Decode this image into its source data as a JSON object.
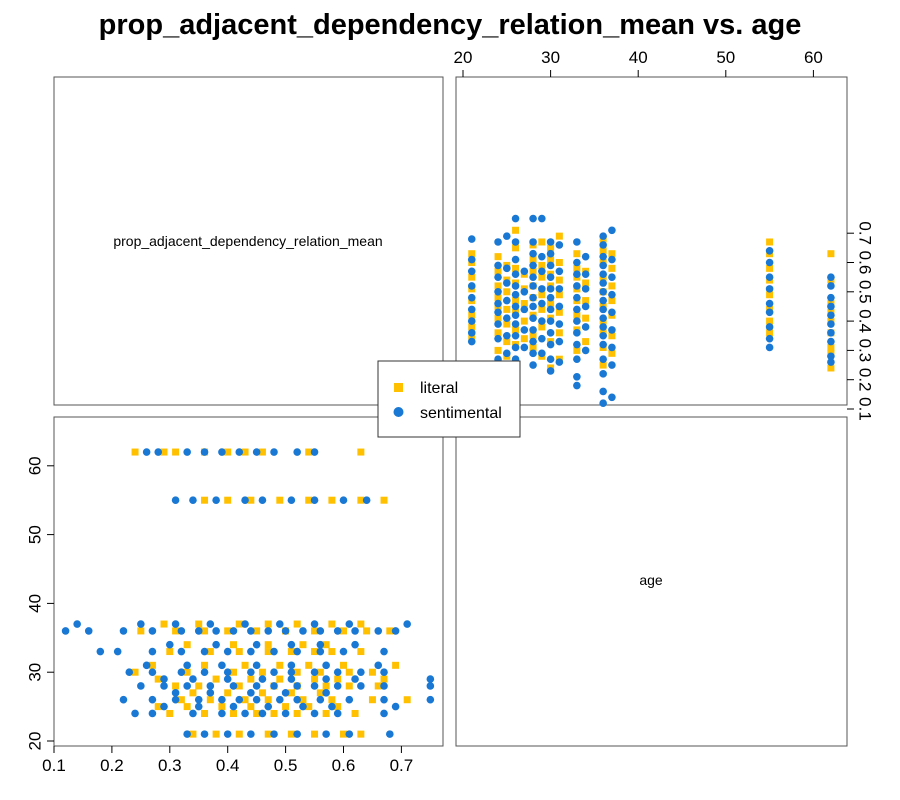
{
  "chart_data": {
    "type": "scatter",
    "title": "prop_adjacent_dependency_relation_mean vs. age",
    "diagonal_labels": [
      "prop_adjacent_dependency_relation_mean",
      "age"
    ],
    "prop_axis": {
      "range": [
        0.1,
        0.75
      ],
      "ticks": [
        "0.1",
        "0.2",
        "0.3",
        "0.4",
        "0.5",
        "0.6",
        "0.7"
      ]
    },
    "age_axis": {
      "range": [
        20,
        63
      ],
      "ticks_top": [
        "20",
        "30",
        "40",
        "50",
        "60"
      ],
      "ticks_left": [
        "20",
        "30",
        "40",
        "50",
        "60"
      ]
    },
    "legend": {
      "placement": "center",
      "entries": [
        "literal",
        "sentimental"
      ]
    },
    "series": [
      {
        "name": "literal",
        "color": "#FFC000",
        "marker": "square",
        "points": [
          [
            21,
            0.34
          ],
          [
            21,
            0.38
          ],
          [
            21,
            0.42
          ],
          [
            21,
            0.47
          ],
          [
            21,
            0.51
          ],
          [
            21,
            0.55
          ],
          [
            21,
            0.6
          ],
          [
            21,
            0.63
          ],
          [
            24,
            0.3
          ],
          [
            24,
            0.36
          ],
          [
            24,
            0.41
          ],
          [
            24,
            0.45
          ],
          [
            24,
            0.48
          ],
          [
            24,
            0.52
          ],
          [
            24,
            0.57
          ],
          [
            24,
            0.62
          ],
          [
            25,
            0.28
          ],
          [
            25,
            0.33
          ],
          [
            25,
            0.39
          ],
          [
            25,
            0.44
          ],
          [
            25,
            0.5
          ],
          [
            25,
            0.54
          ],
          [
            25,
            0.59
          ],
          [
            26,
            0.32
          ],
          [
            26,
            0.37
          ],
          [
            26,
            0.43
          ],
          [
            26,
            0.47
          ],
          [
            26,
            0.53
          ],
          [
            26,
            0.58
          ],
          [
            26,
            0.65
          ],
          [
            26,
            0.71
          ],
          [
            27,
            0.34
          ],
          [
            27,
            0.4
          ],
          [
            27,
            0.46
          ],
          [
            27,
            0.51
          ],
          [
            27,
            0.56
          ],
          [
            28,
            0.31
          ],
          [
            28,
            0.35
          ],
          [
            28,
            0.42
          ],
          [
            28,
            0.48
          ],
          [
            28,
            0.52
          ],
          [
            28,
            0.57
          ],
          [
            28,
            0.61
          ],
          [
            28,
            0.66
          ],
          [
            29,
            0.28
          ],
          [
            29,
            0.38
          ],
          [
            29,
            0.44
          ],
          [
            29,
            0.49
          ],
          [
            29,
            0.55
          ],
          [
            29,
            0.59
          ],
          [
            29,
            0.67
          ],
          [
            30,
            0.24
          ],
          [
            30,
            0.33
          ],
          [
            30,
            0.41
          ],
          [
            30,
            0.46
          ],
          [
            30,
            0.52
          ],
          [
            30,
            0.56
          ],
          [
            30,
            0.61
          ],
          [
            30,
            0.65
          ],
          [
            31,
            0.27
          ],
          [
            31,
            0.36
          ],
          [
            31,
            0.43
          ],
          [
            31,
            0.49
          ],
          [
            31,
            0.54
          ],
          [
            31,
            0.6
          ],
          [
            31,
            0.69
          ],
          [
            33,
            0.3
          ],
          [
            33,
            0.37
          ],
          [
            33,
            0.42
          ],
          [
            33,
            0.47
          ],
          [
            33,
            0.51
          ],
          [
            33,
            0.55
          ],
          [
            33,
            0.58
          ],
          [
            33,
            0.63
          ],
          [
            34,
            0.33
          ],
          [
            34,
            0.41
          ],
          [
            34,
            0.47
          ],
          [
            34,
            0.53
          ],
          [
            34,
            0.57
          ],
          [
            36,
            0.25
          ],
          [
            36,
            0.31
          ],
          [
            36,
            0.36
          ],
          [
            36,
            0.4
          ],
          [
            36,
            0.45
          ],
          [
            36,
            0.5
          ],
          [
            36,
            0.55
          ],
          [
            36,
            0.6
          ],
          [
            36,
            0.64
          ],
          [
            36,
            0.68
          ],
          [
            37,
            0.29
          ],
          [
            37,
            0.35
          ],
          [
            37,
            0.42
          ],
          [
            37,
            0.47
          ],
          [
            37,
            0.52
          ],
          [
            37,
            0.58
          ],
          [
            37,
            0.63
          ],
          [
            55,
            0.36
          ],
          [
            55,
            0.4
          ],
          [
            55,
            0.44
          ],
          [
            55,
            0.49
          ],
          [
            55,
            0.54
          ],
          [
            55,
            0.58
          ],
          [
            55,
            0.63
          ],
          [
            55,
            0.67
          ],
          [
            62,
            0.24
          ],
          [
            62,
            0.29
          ],
          [
            62,
            0.31
          ],
          [
            62,
            0.36
          ],
          [
            62,
            0.4
          ],
          [
            62,
            0.43
          ],
          [
            62,
            0.46
          ],
          [
            62,
            0.54
          ],
          [
            62,
            0.63
          ]
        ]
      },
      {
        "name": "sentimental",
        "color": "#1878D4",
        "marker": "circle",
        "points": [
          [
            21,
            0.33
          ],
          [
            21,
            0.36
          ],
          [
            21,
            0.4
          ],
          [
            21,
            0.44
          ],
          [
            21,
            0.48
          ],
          [
            21,
            0.52
          ],
          [
            21,
            0.57
          ],
          [
            21,
            0.61
          ],
          [
            21,
            0.68
          ],
          [
            24,
            0.24
          ],
          [
            24,
            0.27
          ],
          [
            24,
            0.34
          ],
          [
            24,
            0.39
          ],
          [
            24,
            0.43
          ],
          [
            24,
            0.46
          ],
          [
            24,
            0.5
          ],
          [
            24,
            0.55
          ],
          [
            24,
            0.59
          ],
          [
            24,
            0.67
          ],
          [
            25,
            0.29
          ],
          [
            25,
            0.35
          ],
          [
            25,
            0.41
          ],
          [
            25,
            0.47
          ],
          [
            25,
            0.53
          ],
          [
            25,
            0.58
          ],
          [
            25,
            0.69
          ],
          [
            26,
            0.22
          ],
          [
            26,
            0.27
          ],
          [
            26,
            0.31
          ],
          [
            26,
            0.35
          ],
          [
            26,
            0.39
          ],
          [
            26,
            0.42
          ],
          [
            26,
            0.45
          ],
          [
            26,
            0.49
          ],
          [
            26,
            0.52
          ],
          [
            26,
            0.56
          ],
          [
            26,
            0.61
          ],
          [
            26,
            0.67
          ],
          [
            26,
            0.75
          ],
          [
            27,
            0.31
          ],
          [
            27,
            0.37
          ],
          [
            27,
            0.44
          ],
          [
            27,
            0.5
          ],
          [
            27,
            0.57
          ],
          [
            28,
            0.25
          ],
          [
            28,
            0.29
          ],
          [
            28,
            0.33
          ],
          [
            28,
            0.37
          ],
          [
            28,
            0.41
          ],
          [
            28,
            0.45
          ],
          [
            28,
            0.48
          ],
          [
            28,
            0.52
          ],
          [
            28,
            0.55
          ],
          [
            28,
            0.59
          ],
          [
            28,
            0.63
          ],
          [
            28,
            0.67
          ],
          [
            28,
            0.75
          ],
          [
            29,
            0.29
          ],
          [
            29,
            0.34
          ],
          [
            29,
            0.4
          ],
          [
            29,
            0.46
          ],
          [
            29,
            0.51
          ],
          [
            29,
            0.57
          ],
          [
            29,
            0.62
          ],
          [
            29,
            0.75
          ],
          [
            30,
            0.23
          ],
          [
            30,
            0.27
          ],
          [
            30,
            0.32
          ],
          [
            30,
            0.36
          ],
          [
            30,
            0.4
          ],
          [
            30,
            0.44
          ],
          [
            30,
            0.48
          ],
          [
            30,
            0.51
          ],
          [
            30,
            0.55
          ],
          [
            30,
            0.59
          ],
          [
            30,
            0.63
          ],
          [
            30,
            0.67
          ],
          [
            31,
            0.26
          ],
          [
            31,
            0.33
          ],
          [
            31,
            0.39
          ],
          [
            31,
            0.45
          ],
          [
            31,
            0.51
          ],
          [
            31,
            0.57
          ],
          [
            31,
            0.66
          ],
          [
            33,
            0.18
          ],
          [
            33,
            0.21
          ],
          [
            33,
            0.27
          ],
          [
            33,
            0.32
          ],
          [
            33,
            0.36
          ],
          [
            33,
            0.4
          ],
          [
            33,
            0.44
          ],
          [
            33,
            0.48
          ],
          [
            33,
            0.52
          ],
          [
            33,
            0.56
          ],
          [
            33,
            0.6
          ],
          [
            33,
            0.67
          ],
          [
            34,
            0.3
          ],
          [
            34,
            0.38
          ],
          [
            34,
            0.45
          ],
          [
            34,
            0.51
          ],
          [
            34,
            0.56
          ],
          [
            34,
            0.62
          ],
          [
            36,
            0.12
          ],
          [
            36,
            0.16
          ],
          [
            36,
            0.22
          ],
          [
            36,
            0.27
          ],
          [
            36,
            0.32
          ],
          [
            36,
            0.35
          ],
          [
            36,
            0.38
          ],
          [
            36,
            0.41
          ],
          [
            36,
            0.44
          ],
          [
            36,
            0.47
          ],
          [
            36,
            0.5
          ],
          [
            36,
            0.53
          ],
          [
            36,
            0.56
          ],
          [
            36,
            0.59
          ],
          [
            36,
            0.62
          ],
          [
            36,
            0.66
          ],
          [
            36,
            0.69
          ],
          [
            37,
            0.14
          ],
          [
            37,
            0.25
          ],
          [
            37,
            0.31
          ],
          [
            37,
            0.37
          ],
          [
            37,
            0.43
          ],
          [
            37,
            0.49
          ],
          [
            37,
            0.55
          ],
          [
            37,
            0.61
          ],
          [
            37,
            0.71
          ],
          [
            55,
            0.31
          ],
          [
            55,
            0.34
          ],
          [
            55,
            0.38
          ],
          [
            55,
            0.43
          ],
          [
            55,
            0.46
          ],
          [
            55,
            0.51
          ],
          [
            55,
            0.55
          ],
          [
            55,
            0.6
          ],
          [
            55,
            0.64
          ],
          [
            62,
            0.26
          ],
          [
            62,
            0.28
          ],
          [
            62,
            0.33
          ],
          [
            62,
            0.36
          ],
          [
            62,
            0.39
          ],
          [
            62,
            0.42
          ],
          [
            62,
            0.45
          ],
          [
            62,
            0.48
          ],
          [
            62,
            0.52
          ],
          [
            62,
            0.55
          ]
        ]
      }
    ]
  }
}
